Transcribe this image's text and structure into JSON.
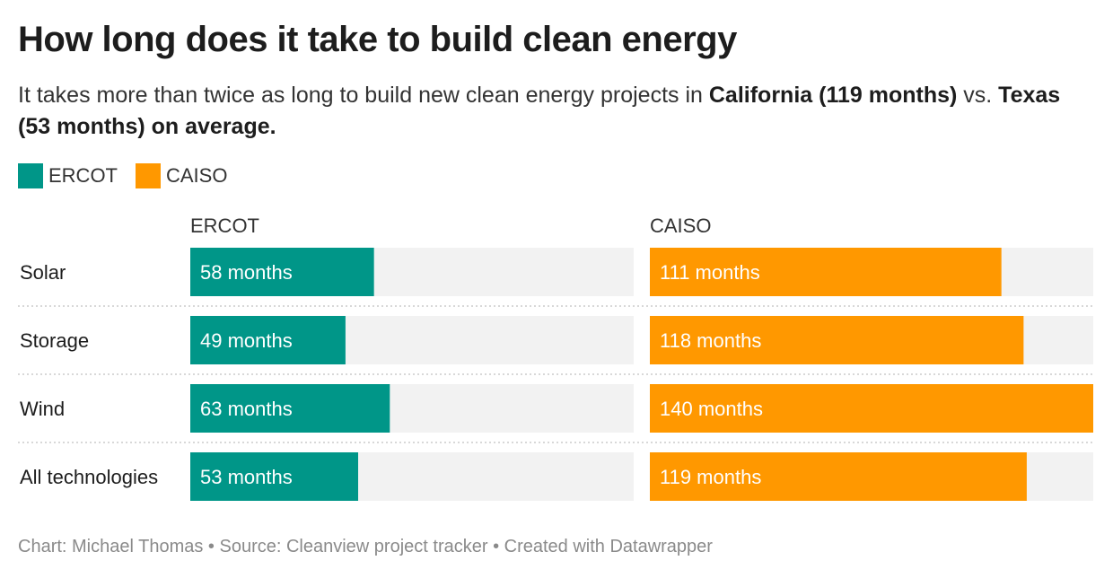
{
  "title": "How long does it take to build clean energy",
  "subtitle": {
    "part1": "It takes more than twice as long to build new clean energy projects in ",
    "bold1": "California (119 months)",
    "part2": " vs. ",
    "bold2": "Texas (53 months) on average."
  },
  "legend": [
    {
      "label": "ERCOT",
      "color": "#009688"
    },
    {
      "label": "CAISO",
      "color": "#ff9800"
    }
  ],
  "footer": "Chart: Michael Thomas • Source: Cleanview project tracker • Created with Datawrapper",
  "chart_data": {
    "type": "bar",
    "orientation": "horizontal",
    "layout": "split-bars",
    "categories": [
      "Solar",
      "Storage",
      "Wind",
      "All technologies"
    ],
    "value_unit": "months",
    "xlim": [
      0,
      140
    ],
    "colors": {
      "track": "#f2f2f2",
      "separator": "#cccccc"
    },
    "series": [
      {
        "name": "ERCOT",
        "color": "#009688",
        "values": [
          58,
          49,
          63,
          53
        ],
        "labels": [
          "58 months",
          "49 months",
          "63 months",
          "53 months"
        ]
      },
      {
        "name": "CAISO",
        "color": "#ff9800",
        "values": [
          111,
          118,
          140,
          119
        ],
        "labels": [
          "111 months",
          "118 months",
          "140 months",
          "119 months"
        ]
      }
    ]
  }
}
